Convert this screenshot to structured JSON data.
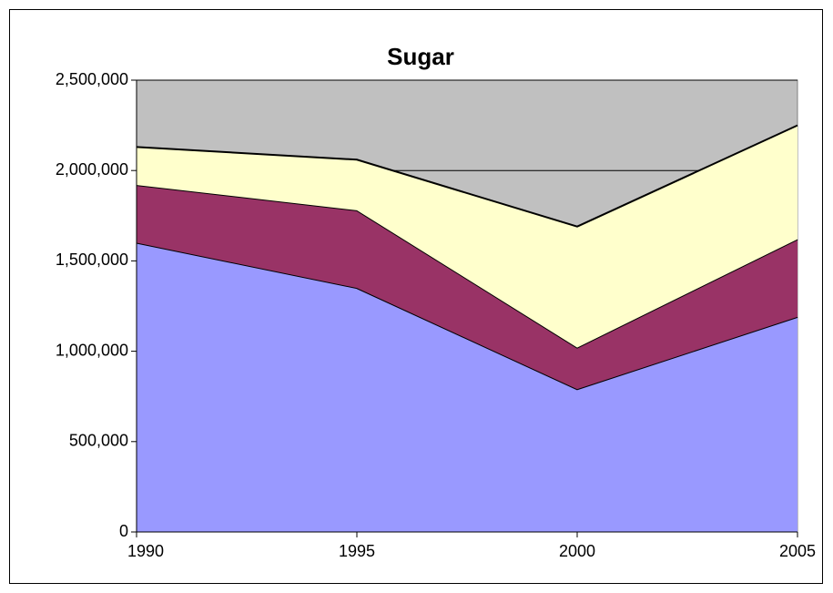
{
  "chart_data": {
    "type": "stacked_area",
    "title": "Sugar",
    "x": [
      1990,
      1995,
      2000,
      2005
    ],
    "xlim": [
      1990,
      2005
    ],
    "xticks": [
      1990,
      1995,
      2000,
      2005
    ],
    "series": [
      {
        "color": "#9999ff",
        "values": [
          1600000,
          1350000,
          790000,
          1190000
        ]
      },
      {
        "color": "#993366",
        "values": [
          320000,
          430000,
          230000,
          430000
        ]
      },
      {
        "color": "#ffffcc",
        "values": [
          210000,
          280000,
          670000,
          630000
        ]
      }
    ],
    "ylim": [
      0,
      2500000
    ],
    "yticks": [
      0,
      {
        "value": 500000,
        "label": "500,000"
      },
      {
        "value": 1000000,
        "label": "1,000,000"
      },
      {
        "value": 1500000,
        "label": "1,500,000"
      },
      {
        "value": 2000000,
        "label": "2,000,000"
      },
      {
        "value": 2500000,
        "label": "2,500,000"
      }
    ],
    "grid": true,
    "plot_background": "#c0c0c0"
  }
}
